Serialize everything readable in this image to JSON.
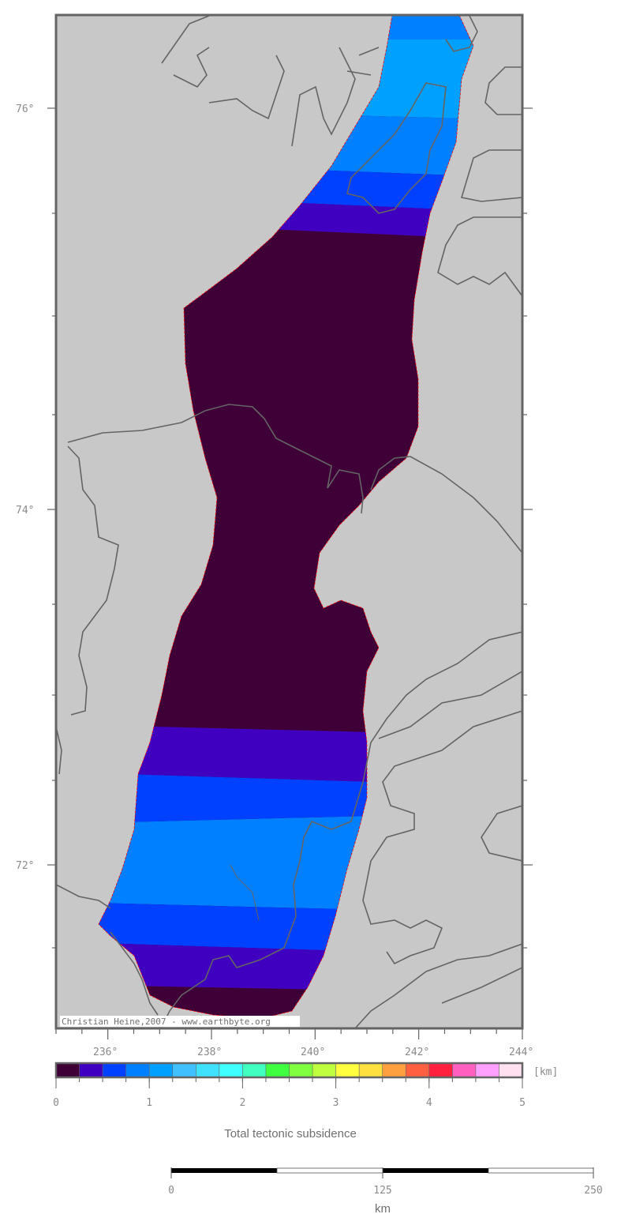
{
  "map": {
    "credit": "Christian Heine,2007 - www.earthbyte.org",
    "lon_labels": [
      "236°",
      "238°",
      "240°",
      "242°",
      "244°"
    ],
    "lat_labels": [
      "76°",
      "74°",
      "72°"
    ],
    "colors": {
      "background": "#c8c8c8",
      "coast": "#646464",
      "outline": "#ff0000"
    }
  },
  "colorbar": {
    "title": "Total tectonic subsidence",
    "unit": "[km]",
    "range": [
      0,
      5
    ],
    "tick_labels": [
      "0",
      "1",
      "2",
      "3",
      "4",
      "5"
    ],
    "colors": [
      "#3f0038",
      "#4000c0",
      "#0040ff",
      "#0080ff",
      "#00a0ff",
      "#40c0ff",
      "#40e0ff",
      "#40ffff",
      "#40ffc0",
      "#40ff40",
      "#80ff40",
      "#c0ff40",
      "#ffff40",
      "#ffe040",
      "#ffa040",
      "#ff6040",
      "#ff2040",
      "#ff60c0",
      "#ffa0ff",
      "#ffe0f0"
    ]
  },
  "scalebar": {
    "tick_labels": [
      "0",
      "125",
      "250"
    ],
    "unit": "km"
  }
}
